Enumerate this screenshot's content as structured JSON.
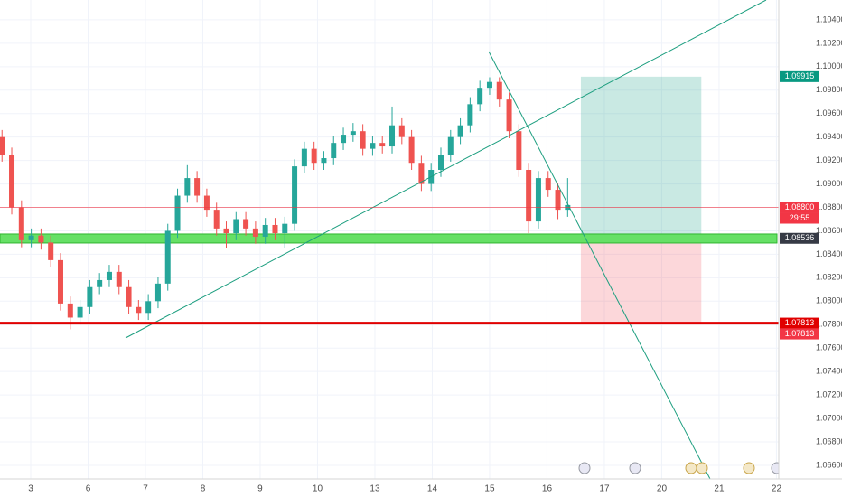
{
  "chart_data": {
    "type": "candlestick",
    "x": [
      -0.5,
      -0.33,
      -0.16,
      0.01,
      0.18,
      0.35,
      0.52,
      0.69,
      0.86,
      1.03,
      1.2,
      1.37,
      1.54,
      1.71,
      1.88,
      2.05,
      2.22,
      2.39,
      2.56,
      2.73,
      2.9,
      3.07,
      3.24,
      3.41,
      3.58,
      3.75,
      3.92,
      4.09,
      4.26,
      4.43,
      4.6,
      4.77,
      4.94,
      5.11,
      5.28,
      5.45,
      5.62,
      5.79,
      5.96,
      6.13,
      6.3,
      6.47,
      6.64,
      6.81,
      6.98,
      7.15,
      7.32,
      7.49,
      7.66,
      7.83,
      8.0,
      8.17,
      8.34,
      8.51,
      8.68,
      8.85,
      9.02,
      9.19,
      9.36
    ],
    "open": [
      1.094,
      1.0925,
      1.088,
      1.0852,
      1.0856,
      1.085,
      1.0835,
      1.0798,
      1.0786,
      1.0795,
      1.0812,
      1.0818,
      1.0825,
      1.0812,
      1.0795,
      1.079,
      1.08,
      1.0815,
      1.086,
      1.089,
      1.0905,
      1.089,
      1.0878,
      1.0862,
      1.0858,
      1.087,
      1.0862,
      1.0855,
      1.0865,
      1.0858,
      1.0866,
      1.0915,
      1.093,
      1.0918,
      1.0922,
      1.0935,
      1.0942,
      1.0945,
      1.093,
      1.0935,
      1.0932,
      1.095,
      1.094,
      1.0918,
      1.09,
      1.0912,
      1.0925,
      1.094,
      1.095,
      1.0968,
      1.0982,
      1.0987,
      1.0972,
      1.0945,
      1.0912,
      1.0868,
      1.0905,
      1.0895,
      1.0878
    ],
    "close": [
      1.0925,
      1.088,
      1.0852,
      1.0856,
      1.085,
      1.0835,
      1.0798,
      1.0786,
      1.0795,
      1.0812,
      1.0818,
      1.0825,
      1.0812,
      1.0795,
      1.079,
      1.08,
      1.0815,
      1.086,
      1.089,
      1.0905,
      1.089,
      1.0878,
      1.0862,
      1.0858,
      1.087,
      1.0862,
      1.0855,
      1.0865,
      1.0858,
      1.0866,
      1.0915,
      1.093,
      1.0918,
      1.0922,
      1.0935,
      1.0942,
      1.0945,
      1.093,
      1.0935,
      1.0932,
      1.095,
      1.094,
      1.0918,
      1.09,
      1.0912,
      1.0925,
      1.094,
      1.095,
      1.0968,
      1.0982,
      1.0987,
      1.0972,
      1.0945,
      1.0912,
      1.0868,
      1.0905,
      1.0895,
      1.0878,
      1.0882
    ],
    "high": [
      1.0946,
      1.0931,
      1.0886,
      1.0862,
      1.0862,
      1.0856,
      1.0841,
      1.0804,
      1.0801,
      1.0818,
      1.0824,
      1.0831,
      1.0831,
      1.0818,
      1.0801,
      1.0806,
      1.0821,
      1.0866,
      1.0896,
      1.0916,
      1.0911,
      1.0896,
      1.0884,
      1.0868,
      1.0876,
      1.0876,
      1.0868,
      1.0871,
      1.0871,
      1.0872,
      1.0921,
      1.0936,
      1.0936,
      1.0928,
      1.0941,
      1.0948,
      1.0952,
      1.0951,
      1.0941,
      1.0941,
      1.0966,
      1.0956,
      1.0946,
      1.0924,
      1.0918,
      1.0931,
      1.0946,
      1.0956,
      1.0974,
      1.0988,
      1.0991,
      1.0991,
      1.0978,
      1.0951,
      1.0918,
      1.0911,
      1.0911,
      1.0901,
      1.0905
    ],
    "low": [
      1.0919,
      1.0874,
      1.0846,
      1.0846,
      1.0844,
      1.0829,
      1.0792,
      1.0776,
      1.078,
      1.0789,
      1.0806,
      1.0812,
      1.0806,
      1.0789,
      1.0784,
      1.0784,
      1.0794,
      1.0809,
      1.0854,
      1.0884,
      1.0884,
      1.0872,
      1.0856,
      1.0845,
      1.0852,
      1.0856,
      1.0849,
      1.0849,
      1.0852,
      1.0845,
      1.086,
      1.0909,
      1.0912,
      1.0912,
      1.0916,
      1.0929,
      1.0936,
      1.0924,
      1.0924,
      1.0926,
      1.0926,
      1.0934,
      1.0912,
      1.0894,
      1.0894,
      1.0906,
      1.0919,
      1.0934,
      1.0944,
      1.0962,
      1.0976,
      1.0966,
      1.0939,
      1.0906,
      1.0858,
      1.0862,
      1.0889,
      1.087,
      1.0872
    ],
    "up_color": "#26a69a",
    "down_color": "#ef5350",
    "xlim": [
      -0.535,
      13.04
    ],
    "xticks": [
      {
        "value": 0,
        "label": "3"
      },
      {
        "value": 1,
        "label": "6"
      },
      {
        "value": 2,
        "label": "7"
      },
      {
        "value": 3,
        "label": "8"
      },
      {
        "value": 4,
        "label": "9"
      },
      {
        "value": 5,
        "label": "10"
      },
      {
        "value": 6,
        "label": "13"
      },
      {
        "value": 7,
        "label": "14"
      },
      {
        "value": 8,
        "label": "15"
      },
      {
        "value": 9,
        "label": "16"
      },
      {
        "value": 10,
        "label": "17"
      },
      {
        "value": 11,
        "label": "20"
      },
      {
        "value": 12,
        "label": "21"
      },
      {
        "value": 13,
        "label": "22"
      }
    ],
    "ylim": [
      1.06484,
      1.10569
    ],
    "yticks": [
      {
        "value": 1.066,
        "label": "1.06600"
      },
      {
        "value": 1.068,
        "label": "1.06800"
      },
      {
        "value": 1.07,
        "label": "1.07000"
      },
      {
        "value": 1.072,
        "label": "1.07200"
      },
      {
        "value": 1.074,
        "label": "1.07400"
      },
      {
        "value": 1.076,
        "label": "1.07600"
      },
      {
        "value": 1.078,
        "label": "1.07800"
      },
      {
        "value": 1.08,
        "label": "1.08000"
      },
      {
        "value": 1.082,
        "label": "1.08200"
      },
      {
        "value": 1.084,
        "label": "1.08400"
      },
      {
        "value": 1.086,
        "label": "1.08600"
      },
      {
        "value": 1.088,
        "label": "1.08800"
      },
      {
        "value": 1.09,
        "label": "1.09000"
      },
      {
        "value": 1.092,
        "label": "1.09200"
      },
      {
        "value": 1.094,
        "label": "1.09400"
      },
      {
        "value": 1.096,
        "label": "1.09600"
      },
      {
        "value": 1.098,
        "label": "1.09800"
      },
      {
        "value": 1.1,
        "label": "1.10000"
      },
      {
        "value": 1.102,
        "label": "1.10200"
      },
      {
        "value": 1.104,
        "label": "1.10400"
      }
    ],
    "grid": true,
    "levels": [
      {
        "value": 1.09915,
        "label": "1.09915",
        "color": "#089981",
        "line_width": 0
      },
      {
        "value": 1.088,
        "label": "1.08800",
        "color": "#f23645",
        "line_width": 1
      },
      {
        "value": 1.08536,
        "label": "1.08536",
        "color": "#363a45",
        "line_width": 0
      },
      {
        "value": 1.07813,
        "label": "1.07813",
        "color": "#e00000",
        "line_width": 3
      },
      {
        "value": 1.07813,
        "label": "1.07813",
        "color": "#f23645",
        "line_width": 0
      }
    ],
    "countdown": "29:55",
    "zone": [
      1.08496,
      1.08573
    ],
    "position_x": [
      9.59,
      11.69
    ]
  }
}
